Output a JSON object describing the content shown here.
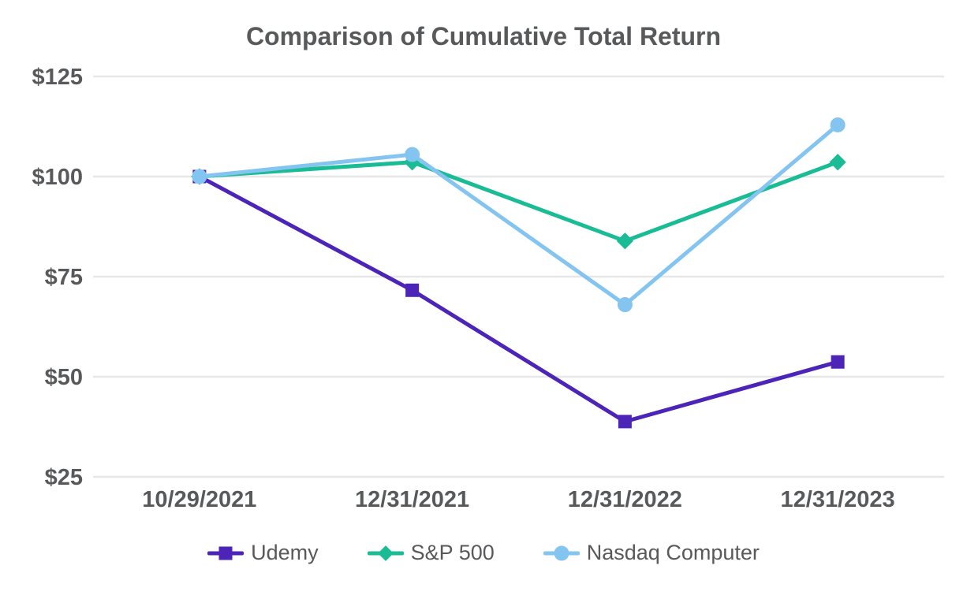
{
  "chart_data": {
    "type": "line",
    "title": "Comparison of Cumulative Total Return",
    "xlabel": "",
    "ylabel": "",
    "x_categories": [
      "10/29/2021",
      "12/31/2021",
      "12/31/2022",
      "12/31/2023"
    ],
    "y_tick_values": [
      25,
      50,
      75,
      100,
      125
    ],
    "y_tick_prefix": "$",
    "ylim": [
      25,
      125
    ],
    "grid": true,
    "legend_position": "bottom",
    "series": [
      {
        "name": "Udemy",
        "marker": "square",
        "color": "#4C24B8",
        "values": [
          100,
          71.6,
          38.8,
          53.7
        ]
      },
      {
        "name": "S&P 500",
        "marker": "diamond",
        "color": "#1ABC96",
        "values": [
          100,
          103.6,
          83.9,
          103.6
        ]
      },
      {
        "name": "Nasdaq Computer",
        "marker": "circle",
        "color": "#84C4F0",
        "values": [
          100,
          105.5,
          68.0,
          112.9
        ]
      }
    ],
    "colors": {
      "text": "#58595B",
      "gridline": "#E7E7E7",
      "background": "#FFFFFF"
    }
  }
}
